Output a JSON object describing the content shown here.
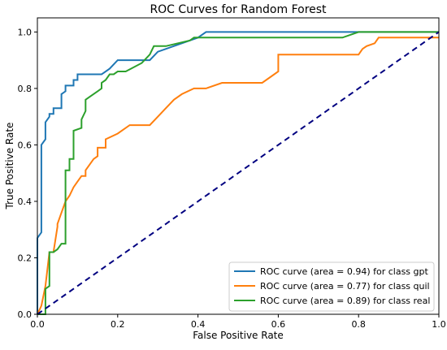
{
  "chart_data": {
    "type": "line",
    "title": "ROC Curves for Random Forest",
    "xlabel": "False Positive Rate",
    "ylabel": "True Positive Rate",
    "xlim": [
      0.0,
      1.0
    ],
    "ylim": [
      0.0,
      1.05
    ],
    "xticks": [
      "0.0",
      "0.2",
      "0.4",
      "0.6",
      "0.8",
      "1.0"
    ],
    "yticks": [
      "0.0",
      "0.2",
      "0.4",
      "0.6",
      "0.8",
      "1.0"
    ],
    "grid": false,
    "legend_position": "lower-right",
    "series": [
      {
        "name": "ROC curve (area = 0.94) for class gpt",
        "color": "#1f77b4",
        "x": [
          0,
          0,
          0.01,
          0.01,
          0.02,
          0.02,
          0.03,
          0.03,
          0.04,
          0.04,
          0.06,
          0.06,
          0.07,
          0.07,
          0.09,
          0.09,
          0.1,
          0.1,
          0.16,
          0.18,
          0.2,
          0.28,
          0.3,
          0.4,
          0.42,
          0.8,
          1.0
        ],
        "y": [
          0,
          0.27,
          0.29,
          0.6,
          0.62,
          0.68,
          0.7,
          0.71,
          0.71,
          0.73,
          0.73,
          0.78,
          0.79,
          0.81,
          0.81,
          0.83,
          0.83,
          0.85,
          0.85,
          0.87,
          0.9,
          0.9,
          0.93,
          0.98,
          1.0,
          1.0,
          1.0
        ]
      },
      {
        "name": "ROC curve (area = 0.77) for class quil",
        "color": "#ff7f0e",
        "x": [
          0,
          0.01,
          0.02,
          0.03,
          0.04,
          0.05,
          0.05,
          0.06,
          0.07,
          0.08,
          0.09,
          0.1,
          0.11,
          0.12,
          0.12,
          0.13,
          0.14,
          0.15,
          0.15,
          0.16,
          0.17,
          0.17,
          0.2,
          0.23,
          0.28,
          0.3,
          0.32,
          0.34,
          0.36,
          0.39,
          0.39,
          0.42,
          0.46,
          0.5,
          0.56,
          0.58,
          0.6,
          0.6,
          0.64,
          0.7,
          0.8,
          0.81,
          0.82,
          0.84,
          0.85,
          0.9,
          1.0
        ],
        "y": [
          0,
          0.03,
          0.1,
          0.22,
          0.22,
          0.31,
          0.32,
          0.36,
          0.4,
          0.42,
          0.45,
          0.47,
          0.49,
          0.49,
          0.51,
          0.53,
          0.55,
          0.56,
          0.59,
          0.59,
          0.59,
          0.62,
          0.64,
          0.67,
          0.67,
          0.7,
          0.73,
          0.76,
          0.78,
          0.8,
          0.8,
          0.8,
          0.82,
          0.82,
          0.82,
          0.84,
          0.86,
          0.92,
          0.92,
          0.92,
          0.92,
          0.94,
          0.95,
          0.96,
          0.98,
          0.98,
          0.98
        ]
      },
      {
        "name": "ROC curve (area = 0.89) for class real",
        "color": "#2ca02c",
        "x": [
          0,
          0.02,
          0.02,
          0.03,
          0.03,
          0.04,
          0.04,
          0.05,
          0.06,
          0.07,
          0.07,
          0.08,
          0.08,
          0.09,
          0.09,
          0.11,
          0.11,
          0.12,
          0.12,
          0.13,
          0.15,
          0.16,
          0.16,
          0.17,
          0.18,
          0.19,
          0.2,
          0.22,
          0.26,
          0.28,
          0.29,
          0.3,
          0.32,
          0.38,
          0.39,
          0.41,
          0.6,
          0.76,
          0.8,
          1.0
        ],
        "y": [
          0,
          0,
          0.09,
          0.1,
          0.22,
          0.22,
          0.22,
          0.23,
          0.25,
          0.25,
          0.51,
          0.51,
          0.55,
          0.55,
          0.65,
          0.66,
          0.69,
          0.72,
          0.76,
          0.77,
          0.79,
          0.8,
          0.82,
          0.83,
          0.85,
          0.85,
          0.86,
          0.86,
          0.89,
          0.92,
          0.95,
          0.95,
          0.95,
          0.97,
          0.98,
          0.98,
          0.98,
          0.98,
          1.0,
          1.0
        ]
      }
    ],
    "reference_line": {
      "x": [
        0,
        1
      ],
      "y": [
        0,
        1
      ],
      "color": "#000080",
      "style": "dashed"
    }
  }
}
